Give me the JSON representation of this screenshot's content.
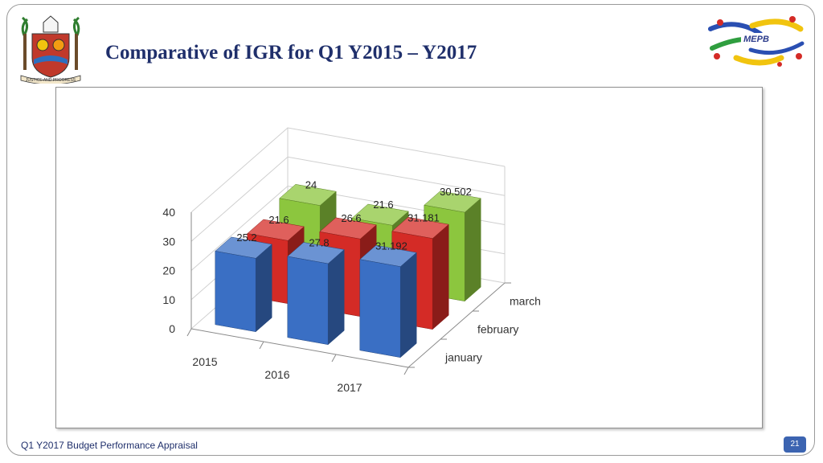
{
  "slide": {
    "title": "Comparative of  IGR for Q1 Y2015 – Y2017",
    "footer": "Q1 Y2017 Budget Performance Appraisal",
    "page_number": "21",
    "right_logo_text": "MEPB",
    "left_logo_motto": "JUSTICE AND PROGRESS"
  },
  "chart_data": {
    "type": "bar",
    "title": "",
    "categories": [
      "2015",
      "2016",
      "2017"
    ],
    "series": [
      {
        "name": "january",
        "values": [
          25.2,
          27.8,
          31.192
        ],
        "color": "#3a6fc4"
      },
      {
        "name": "february",
        "values": [
          21.6,
          26.6,
          31.181
        ],
        "color": "#d42b26"
      },
      {
        "name": "march",
        "values": [
          24,
          21.6,
          30.502
        ],
        "color": "#8cc63e"
      }
    ],
    "yticks": [
      "0",
      "10",
      "20",
      "30",
      "40"
    ],
    "ylim": [
      0,
      40
    ],
    "xlabel": "",
    "ylabel": "",
    "grid": true,
    "legend": "none"
  }
}
